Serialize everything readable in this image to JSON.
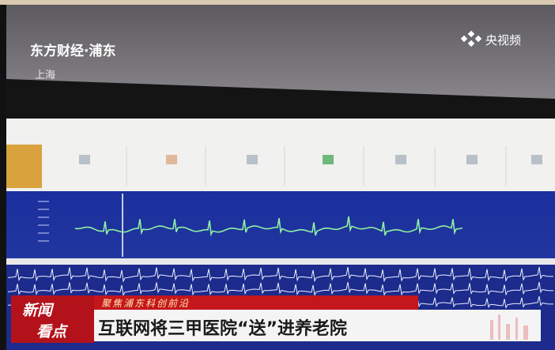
{
  "overlay": {
    "channel": "东方财经·浦东",
    "location": "上海",
    "watermark": "央视频"
  },
  "lower_third": {
    "logo": [
      "新闻",
      "看点"
    ],
    "kicker": "聚焦浦东科创前沿",
    "headline": "互联网将三甲医院“送”进养老院"
  }
}
